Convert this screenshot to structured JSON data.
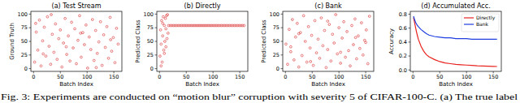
{
  "chart_data": [
    {
      "type": "scatter",
      "title": "(a) Test Stream",
      "x_label": "Batch Index",
      "y_label": "Ground Truth",
      "color": "#d62728",
      "marker": "circle",
      "xlim": [
        -5,
        165
      ],
      "ylim": [
        -5,
        105
      ],
      "xticks": [
        0,
        50,
        100,
        150
      ],
      "yticks": [
        0,
        25,
        50,
        75,
        100
      ],
      "x": [
        2,
        5,
        8,
        11,
        14,
        17,
        20,
        23,
        26,
        29,
        32,
        35,
        38,
        41,
        44,
        47,
        50,
        53,
        56,
        59,
        62,
        65,
        68,
        71,
        74,
        77,
        80,
        83,
        86,
        89,
        92,
        95,
        98,
        101,
        104,
        107,
        110,
        113,
        116,
        119,
        122,
        125,
        128,
        131,
        134,
        137,
        140,
        143,
        146,
        149,
        152,
        155,
        158,
        4,
        18,
        33,
        61,
        88,
        117,
        144
      ],
      "y": [
        12,
        67,
        34,
        89,
        5,
        51,
        76,
        23,
        95,
        41,
        8,
        63,
        30,
        82,
        17,
        55,
        71,
        3,
        47,
        92,
        26,
        60,
        14,
        85,
        38,
        73,
        9,
        52,
        97,
        21,
        66,
        44,
        80,
        1,
        58,
        35,
        90,
        15,
        70,
        28,
        49,
        86,
        6,
        62,
        39,
        77,
        19,
        94,
        32,
        57,
        11,
        74,
        45,
        83,
        27,
        99,
        40,
        65,
        2,
        53
      ]
    },
    {
      "type": "scatter",
      "title": "(b) Directly",
      "x_label": "Batch Index",
      "y_label": "Predicted Class",
      "color": "#d62728",
      "marker": "circle",
      "xlim": [
        -5,
        165
      ],
      "ylim": [
        -5,
        105
      ],
      "xticks": [
        0,
        50,
        100,
        150
      ],
      "yticks": [
        0,
        25,
        50,
        75,
        100
      ],
      "x": [
        1,
        2,
        3,
        4,
        5,
        6,
        7,
        8,
        9,
        10,
        11,
        12,
        13,
        14,
        15,
        16,
        3,
        6,
        9,
        12,
        17,
        20,
        23,
        26,
        29,
        32,
        35,
        38,
        41,
        44,
        47,
        50,
        53,
        56,
        59,
        62,
        65,
        68,
        71,
        74,
        77,
        80,
        83,
        86,
        89,
        92,
        95,
        98,
        101,
        104,
        107,
        110,
        113,
        116,
        119,
        122,
        125,
        128,
        131,
        134,
        137,
        140,
        143,
        146,
        149,
        152,
        155,
        158
      ],
      "y": [
        23,
        71,
        45,
        88,
        12,
        60,
        95,
        34,
        79,
        50,
        92,
        40,
        97,
        55,
        99,
        65,
        5,
        83,
        28,
        73,
        79,
        79,
        79,
        79,
        79,
        79,
        79,
        79,
        79,
        79,
        79,
        79,
        79,
        79,
        79,
        79,
        79,
        79,
        79,
        79,
        79,
        79,
        79,
        79,
        79,
        79,
        79,
        79,
        79,
        79,
        79,
        79,
        79,
        79,
        79,
        79,
        79,
        79,
        79,
        79,
        79,
        79,
        79,
        79,
        79,
        79,
        79,
        79
      ]
    },
    {
      "type": "scatter",
      "title": "(c) Bank",
      "x_label": "Batch Index",
      "y_label": "Predicted Class",
      "color": "#d62728",
      "marker": "circle",
      "xlim": [
        -5,
        165
      ],
      "ylim": [
        -5,
        105
      ],
      "xticks": [
        0,
        50,
        100,
        150
      ],
      "yticks": [
        0,
        25,
        50,
        75,
        100
      ],
      "x": [
        1,
        4,
        7,
        10,
        13,
        16,
        19,
        22,
        25,
        28,
        31,
        34,
        37,
        40,
        43,
        46,
        49,
        52,
        55,
        58,
        61,
        64,
        67,
        70,
        73,
        76,
        79,
        82,
        85,
        88,
        91,
        94,
        97,
        100,
        103,
        106,
        109,
        112,
        115,
        118,
        121,
        124,
        127,
        130,
        133,
        136,
        139,
        142,
        145,
        148,
        151,
        154,
        157,
        10,
        25,
        47,
        79,
        103,
        131,
        150
      ],
      "y": [
        45,
        8,
        72,
        31,
        90,
        16,
        58,
        83,
        3,
        66,
        24,
        97,
        50,
        12,
        77,
        38,
        61,
        6,
        88,
        29,
        54,
        19,
        93,
        42,
        70,
        2,
        35,
        81,
        14,
        63,
        47,
        99,
        27,
        75,
        10,
        56,
        86,
        21,
        68,
        33,
        5,
        79,
        44,
        91,
        18,
        60,
        37,
        84,
        25,
        52,
        71,
        9,
        96,
        40,
        64,
        13,
        87,
        30,
        57,
        48
      ]
    },
    {
      "type": "line",
      "title": "(d) Accumulated Acc.",
      "x_label": "Batch Index",
      "y_label": "Accuracy",
      "legend": "upper right",
      "xlim": [
        -5,
        165
      ],
      "ylim": [
        -0.02,
        0.84
      ],
      "xticks": [
        0,
        50,
        100,
        150
      ],
      "yticks": [
        {
          "value": 0,
          "label": "0.0"
        },
        {
          "value": 0.2,
          "label": "0.2"
        },
        {
          "value": 0.4,
          "label": "0.4"
        },
        {
          "value": 0.6,
          "label": "0.6"
        },
        {
          "value": 0.8,
          "label": "0.8"
        }
      ],
      "x": [
        1,
        3,
        5,
        8,
        10,
        15,
        20,
        25,
        30,
        40,
        50,
        60,
        70,
        80,
        90,
        100,
        110,
        120,
        130,
        140,
        150,
        157
      ],
      "series": [
        {
          "name": "Directly",
          "color": "#e8231f",
          "values": [
            0.75,
            0.68,
            0.6,
            0.5,
            0.44,
            0.34,
            0.27,
            0.22,
            0.19,
            0.15,
            0.12,
            0.1,
            0.09,
            0.08,
            0.075,
            0.07,
            0.065,
            0.06,
            0.058,
            0.055,
            0.052,
            0.05
          ]
        },
        {
          "name": "Bank",
          "color": "#1f3fe0",
          "values": [
            0.77,
            0.72,
            0.68,
            0.64,
            0.62,
            0.58,
            0.55,
            0.52,
            0.5,
            0.48,
            0.47,
            0.46,
            0.46,
            0.45,
            0.45,
            0.45,
            0.44,
            0.44,
            0.44,
            0.44,
            0.44,
            0.44
          ]
        }
      ]
    }
  ],
  "caption": "Fig. 3: Experiments are conducted on “motion blur” corruption with severity 5 of CIFAR-100-C. (a) The true label"
}
